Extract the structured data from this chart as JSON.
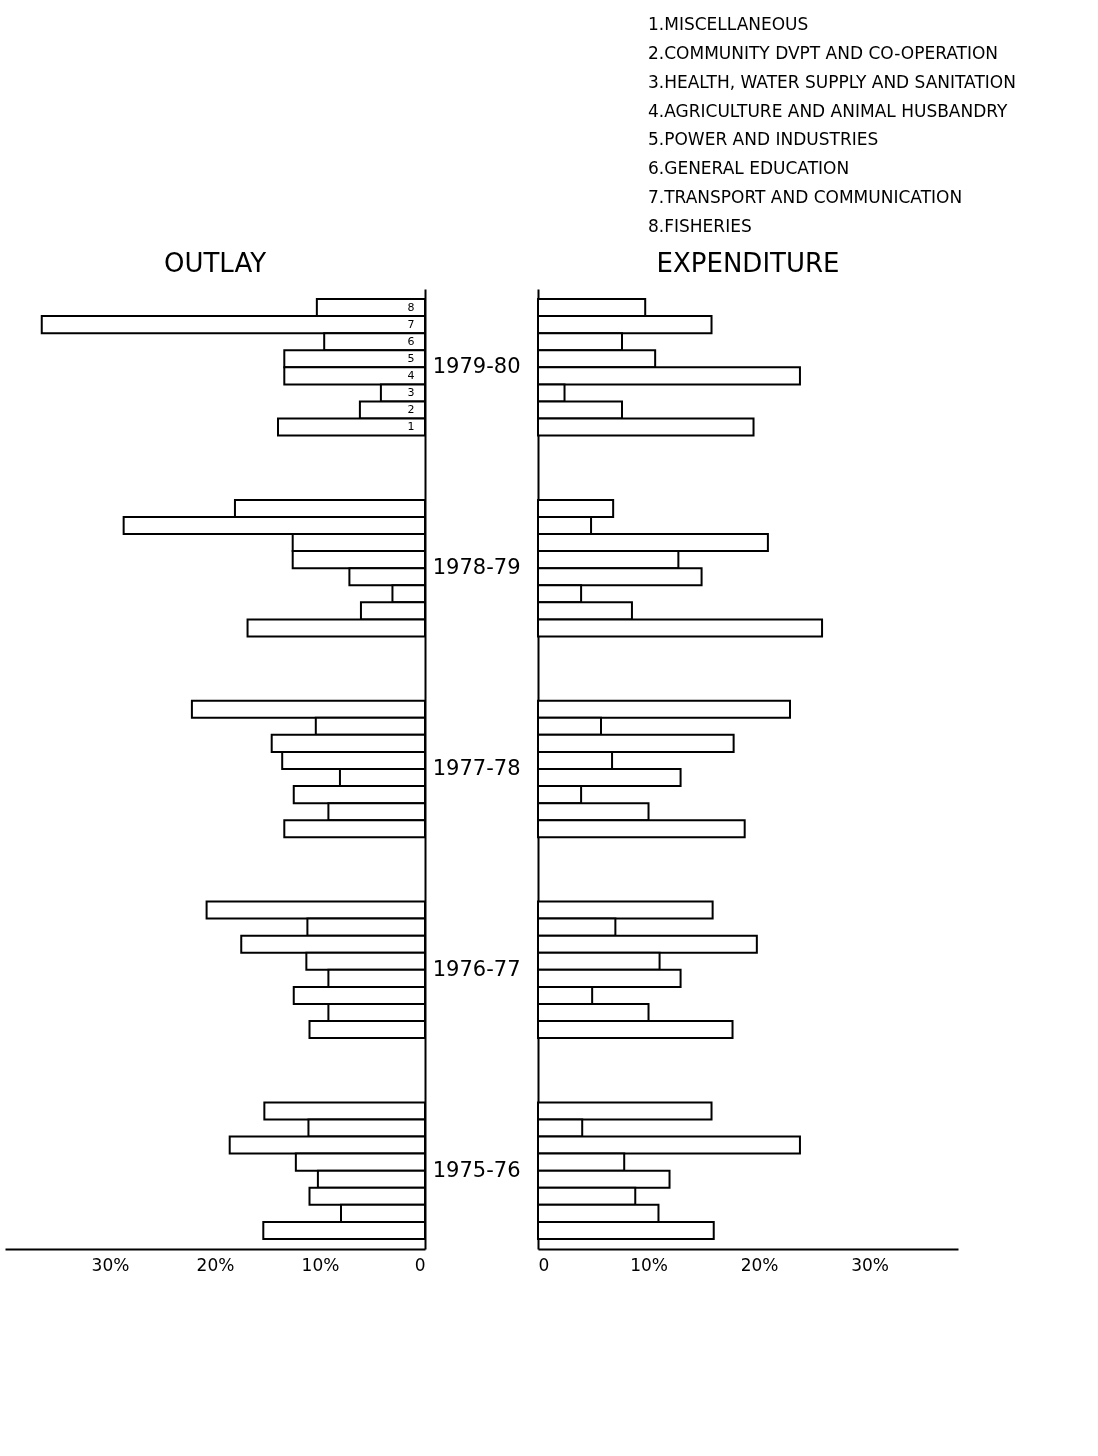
{
  "chart_data": [
    {
      "type": "bar",
      "orientation": "horizontal",
      "title": "OUTLAY",
      "categories": [
        "1979-80",
        "1978-79",
        "1977-78",
        "1976-77",
        "1975-76"
      ],
      "series": [
        {
          "name": "8",
          "color": "#ffffff",
          "values": [
            10.3,
            18.1,
            22.2,
            20.8,
            15.3
          ]
        },
        {
          "name": "7",
          "color": "#ffffff",
          "values": [
            36.5,
            28.7,
            10.4,
            11.2,
            11.1
          ]
        },
        {
          "name": "6",
          "color": "#ffffff",
          "values": [
            9.6,
            12.6,
            14.6,
            17.5,
            18.6
          ]
        },
        {
          "name": "5",
          "color": "#ffffff",
          "values": [
            13.4,
            12.6,
            13.6,
            11.3,
            12.3
          ]
        },
        {
          "name": "4",
          "color": "#ffffff",
          "values": [
            13.4,
            7.2,
            8.1,
            9.2,
            10.2
          ]
        },
        {
          "name": "3",
          "color": "#ffffff",
          "values": [
            4.2,
            3.1,
            12.5,
            12.5,
            11.0
          ]
        },
        {
          "name": "2",
          "color": "#ffffff",
          "values": [
            6.2,
            6.1,
            9.2,
            9.2,
            8.0
          ]
        },
        {
          "name": "1",
          "color": "#ffffff",
          "values": [
            14.0,
            16.9,
            13.4,
            11.0,
            15.4
          ]
        }
      ],
      "xlim": [
        40,
        0
      ],
      "xticks": [
        {
          "value": 30,
          "label": "30%"
        },
        {
          "value": 20,
          "label": "20%"
        },
        {
          "value": 10,
          "label": "10%"
        },
        0
      ],
      "tick_labels": "x",
      "grid": false,
      "legend": false
    },
    {
      "type": "bar",
      "orientation": "horizontal",
      "title": "EXPENDITURE",
      "categories": [
        "1979-80",
        "1978-79",
        "1977-78",
        "1976-77",
        "1975-76"
      ],
      "series": [
        {
          "color": "#ffffff",
          "values": [
            9.7,
            6.8,
            22.8,
            15.8,
            15.7
          ]
        },
        {
          "color": "#ffffff",
          "values": [
            15.7,
            4.8,
            5.7,
            7.0,
            4.0
          ]
        },
        {
          "color": "#ffffff",
          "values": [
            7.6,
            20.8,
            17.7,
            19.8,
            23.7
          ]
        },
        {
          "color": "#ffffff",
          "values": [
            10.6,
            12.7,
            6.7,
            11.0,
            7.8
          ]
        },
        {
          "color": "#ffffff",
          "values": [
            23.7,
            14.8,
            12.9,
            12.9,
            11.9
          ]
        },
        {
          "color": "#ffffff",
          "values": [
            2.4,
            3.9,
            3.9,
            4.9,
            8.8
          ]
        },
        {
          "color": "#ffffff",
          "values": [
            7.6,
            8.5,
            10.0,
            10.0,
            10.9
          ]
        },
        {
          "color": "#ffffff",
          "values": [
            19.5,
            25.7,
            18.7,
            17.6,
            15.9
          ]
        }
      ],
      "xlim": [
        0,
        38
      ],
      "xticks": [
        0,
        {
          "value": 10,
          "label": "10%"
        },
        {
          "value": 20,
          "label": "20%"
        },
        {
          "value": 30,
          "label": "30%"
        }
      ],
      "grid": false,
      "legend": false,
      "annotations": [
        "1.MISCELLANEOUS",
        "2.COMMUNITY DVPT AND CO-OPERATION",
        "3.HEALTH, WATER SUPPLY AND SANITATION",
        "4.AGRICULTURE AND ANIMAL HUSBANDRY",
        "5.POWER AND INDUSTRIES",
        "6.GENERAL EDUCATION",
        "7.TRANSPORT AND COMMUNICATION",
        "8.FISHERIES"
      ]
    }
  ]
}
